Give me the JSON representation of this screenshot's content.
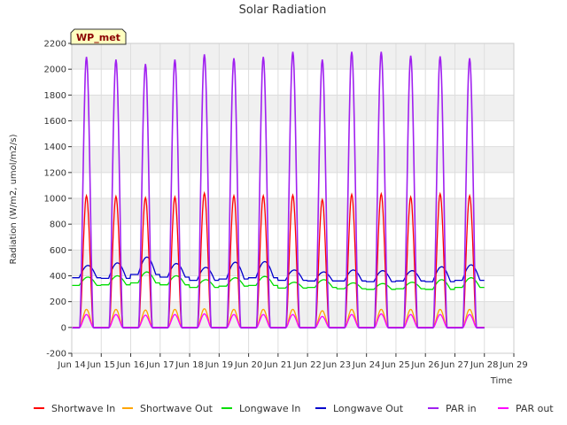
{
  "chart_data": {
    "type": "line",
    "title": "Solar Radiation",
    "xlabel": "Time",
    "ylabel": "Radiation (W/m2, umol/m2/s)",
    "badge": "WP_met",
    "xlim": [
      14,
      29
    ],
    "ylim": [
      -200,
      2200
    ],
    "yticks": [
      -200,
      0,
      200,
      400,
      600,
      800,
      1000,
      1200,
      1400,
      1600,
      1800,
      2000,
      2200
    ],
    "xtick_labels": [
      "Jun 14",
      "Jun 15",
      "Jun 16",
      "Jun 17",
      "Jun 18",
      "Jun 19",
      "Jun 20",
      "Jun 21",
      "Jun 22",
      "Jun 23",
      "Jun 24",
      "Jun 25",
      "Jun 26",
      "Jun 27",
      "Jun 28",
      "Jun 29"
    ],
    "grid": true,
    "legend_position": "bottom",
    "days": [
      14,
      15,
      16,
      17,
      18,
      19,
      20,
      21,
      22,
      23,
      24,
      25,
      26,
      27
    ],
    "series": [
      {
        "name": "Shortwave In",
        "color": "#ff0000",
        "kind": "diurnal",
        "daily_peak": [
          1020,
          1015,
          1005,
          1010,
          1040,
          1020,
          1020,
          1025,
          990,
          1030,
          1035,
          1010,
          1035,
          1020
        ]
      },
      {
        "name": "Shortwave Out",
        "color": "#ffa500",
        "kind": "diurnal",
        "daily_peak": [
          140,
          140,
          135,
          140,
          145,
          140,
          140,
          140,
          130,
          140,
          140,
          140,
          140,
          140
        ]
      },
      {
        "name": "Longwave In",
        "color": "#00dd00",
        "kind": "continuous",
        "daily_min": [
          325,
          330,
          345,
          330,
          310,
          320,
          325,
          305,
          310,
          300,
          295,
          300,
          295,
          310
        ],
        "daily_max": [
          390,
          400,
          430,
          400,
          370,
          385,
          395,
          350,
          370,
          345,
          340,
          350,
          370,
          385
        ]
      },
      {
        "name": "Longwave Out",
        "color": "#0000cc",
        "kind": "continuous",
        "daily_min": [
          385,
          380,
          410,
          390,
          365,
          375,
          385,
          365,
          360,
          360,
          355,
          360,
          355,
          365
        ],
        "daily_max": [
          480,
          500,
          545,
          495,
          465,
          505,
          510,
          445,
          430,
          445,
          440,
          440,
          470,
          485
        ]
      },
      {
        "name": "PAR in",
        "color": "#a020f0",
        "kind": "diurnal",
        "daily_peak": [
          2095,
          2075,
          2040,
          2075,
          2115,
          2085,
          2095,
          2135,
          2075,
          2135,
          2135,
          2105,
          2100,
          2085
        ]
      },
      {
        "name": "PAR out",
        "color": "#ff00ff",
        "kind": "diurnal",
        "daily_peak": [
          100,
          100,
          95,
          100,
          105,
          100,
          100,
          100,
          85,
          100,
          105,
          100,
          100,
          100
        ]
      }
    ]
  }
}
